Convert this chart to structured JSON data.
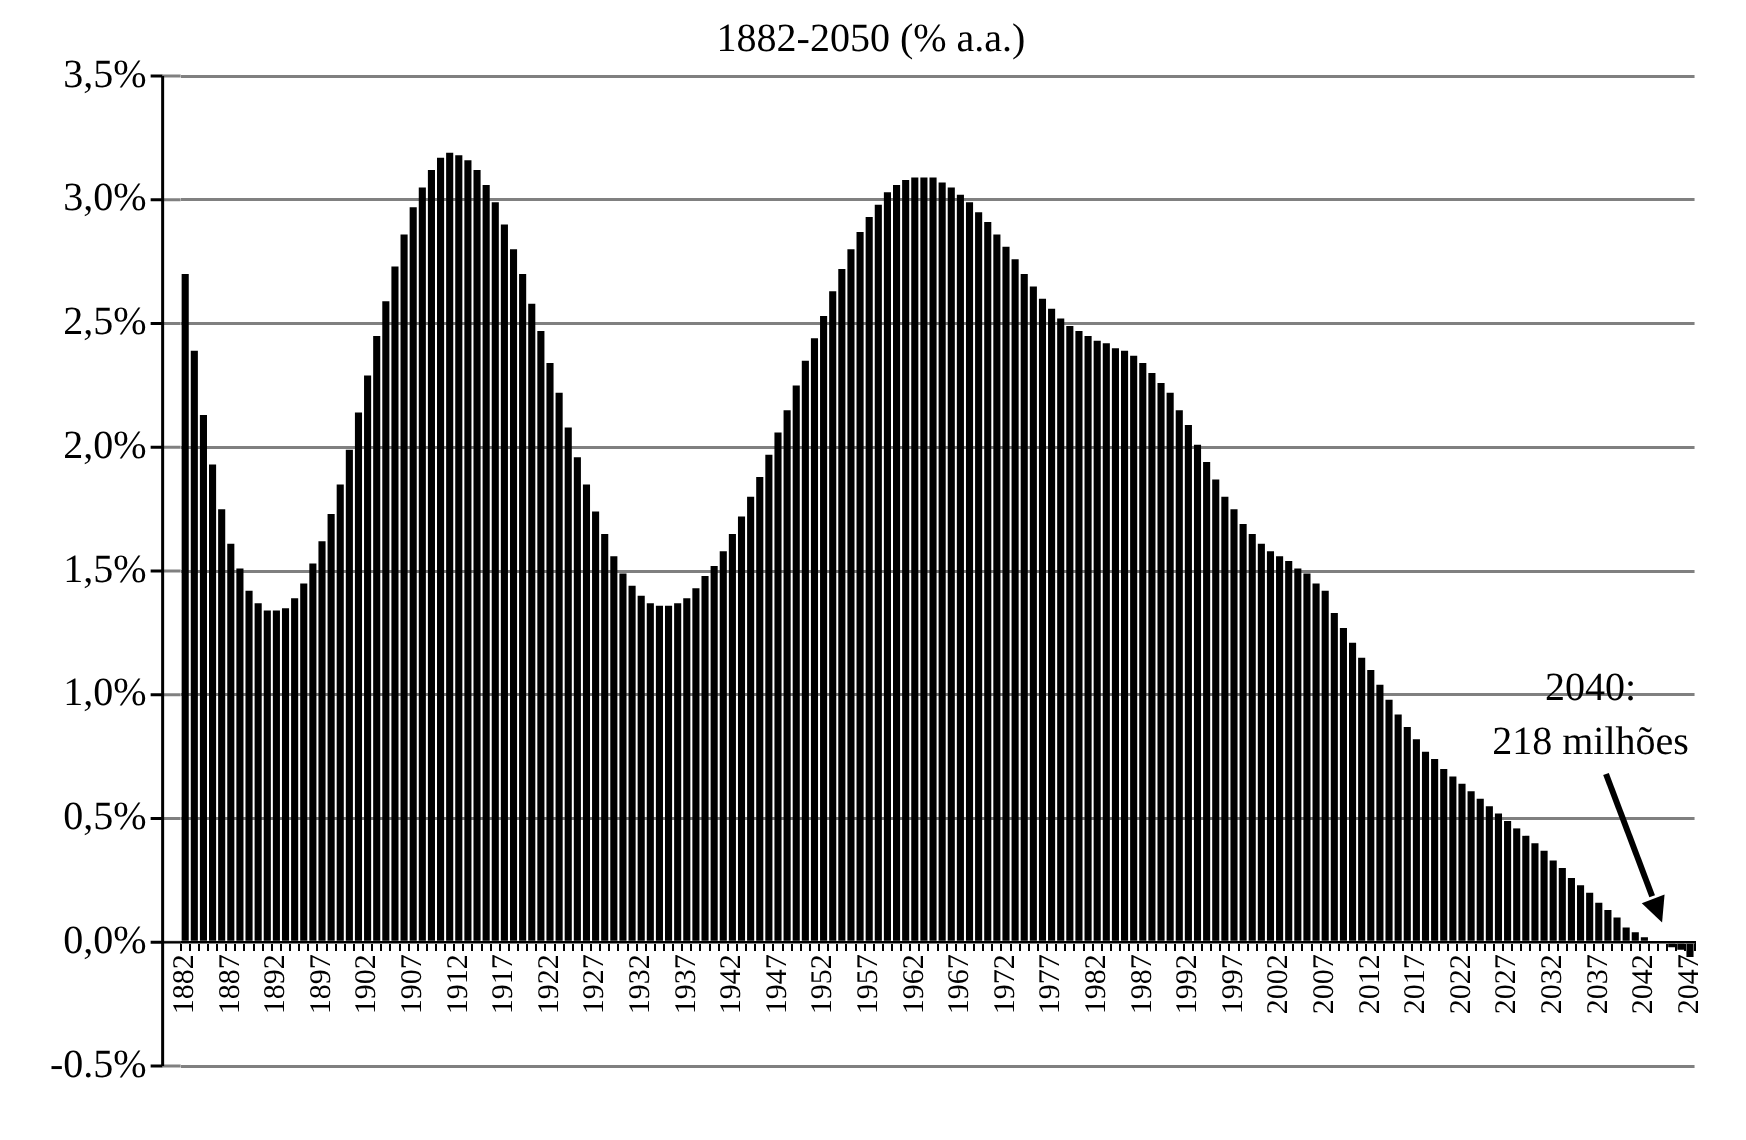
{
  "chart_data": {
    "type": "bar",
    "title": "1882-2050 (% a.a.)",
    "categories": [
      "1882",
      null,
      null,
      null,
      null,
      "1887",
      null,
      null,
      null,
      null,
      "1892",
      null,
      null,
      null,
      null,
      "1897",
      null,
      null,
      null,
      null,
      "1902",
      null,
      null,
      null,
      null,
      "1907",
      null,
      null,
      null,
      null,
      "1912",
      null,
      null,
      null,
      null,
      "1917",
      null,
      null,
      null,
      null,
      "1922",
      null,
      null,
      null,
      null,
      "1927",
      null,
      null,
      null,
      null,
      "1932",
      null,
      null,
      null,
      null,
      "1937",
      null,
      null,
      null,
      null,
      "1942",
      null,
      null,
      null,
      null,
      "1947",
      null,
      null,
      null,
      null,
      "1952",
      null,
      null,
      null,
      null,
      "1957",
      null,
      null,
      null,
      null,
      "1962",
      null,
      null,
      null,
      null,
      "1967",
      null,
      null,
      null,
      null,
      "1972",
      null,
      null,
      null,
      null,
      "1977",
      null,
      null,
      null,
      null,
      "1982",
      null,
      null,
      null,
      null,
      "1987",
      null,
      null,
      null,
      null,
      "1992",
      null,
      null,
      null,
      null,
      "1997",
      null,
      null,
      null,
      null,
      "2002",
      null,
      null,
      null,
      null,
      "2007",
      null,
      null,
      null,
      null,
      "2012",
      null,
      null,
      null,
      null,
      "2017",
      null,
      null,
      null,
      null,
      "2022",
      null,
      null,
      null,
      null,
      "2027",
      null,
      null,
      null,
      null,
      "2032",
      null,
      null,
      null,
      null,
      "2037",
      null,
      null,
      null,
      null,
      "2042",
      null,
      null,
      null,
      null,
      "2047"
    ],
    "values": [
      2.7,
      2.39,
      2.13,
      1.93,
      1.75,
      1.61,
      1.51,
      1.42,
      1.37,
      1.34,
      1.34,
      1.35,
      1.39,
      1.45,
      1.53,
      1.62,
      1.73,
      1.85,
      1.99,
      2.14,
      2.29,
      2.45,
      2.59,
      2.73,
      2.86,
      2.97,
      3.05,
      3.12,
      3.17,
      3.19,
      3.18,
      3.16,
      3.12,
      3.06,
      2.99,
      2.9,
      2.8,
      2.7,
      2.58,
      2.47,
      2.34,
      2.22,
      2.08,
      1.96,
      1.85,
      1.74,
      1.65,
      1.56,
      1.49,
      1.44,
      1.4,
      1.37,
      1.36,
      1.36,
      1.37,
      1.39,
      1.43,
      1.48,
      1.52,
      1.58,
      1.65,
      1.72,
      1.8,
      1.88,
      1.97,
      2.06,
      2.15,
      2.25,
      2.35,
      2.44,
      2.53,
      2.63,
      2.72,
      2.8,
      2.87,
      2.93,
      2.98,
      3.03,
      3.06,
      3.08,
      3.09,
      3.09,
      3.09,
      3.07,
      3.05,
      3.02,
      2.99,
      2.95,
      2.91,
      2.86,
      2.81,
      2.76,
      2.7,
      2.65,
      2.6,
      2.56,
      2.52,
      2.49,
      2.47,
      2.45,
      2.43,
      2.42,
      2.4,
      2.39,
      2.37,
      2.34,
      2.3,
      2.26,
      2.22,
      2.15,
      2.09,
      2.01,
      1.94,
      1.87,
      1.8,
      1.75,
      1.69,
      1.65,
      1.61,
      1.58,
      1.56,
      1.54,
      1.51,
      1.49,
      1.45,
      1.42,
      1.33,
      1.27,
      1.21,
      1.15,
      1.1,
      1.04,
      0.98,
      0.92,
      0.87,
      0.82,
      0.77,
      0.74,
      0.7,
      0.67,
      0.64,
      0.61,
      0.58,
      0.55,
      0.52,
      0.49,
      0.46,
      0.43,
      0.4,
      0.37,
      0.33,
      0.3,
      0.26,
      0.23,
      0.2,
      0.16,
      0.13,
      0.1,
      0.06,
      0.04,
      0.02,
      null,
      null,
      -0.02,
      -0.03,
      -0.06
    ],
    "color": "#000000",
    "ylim": [
      -0.5,
      3.5
    ],
    "yticks": [
      {
        "value": -0.5,
        "label": "-0.5%"
      },
      {
        "value": 0,
        "label": "0,0%"
      },
      {
        "value": 0.5,
        "label": "0,5%"
      },
      {
        "value": 1,
        "label": "1,0%"
      },
      {
        "value": 1.5,
        "label": "1,5%"
      },
      {
        "value": 2,
        "label": "2,0%"
      },
      {
        "value": 2.5,
        "label": "2,5%"
      },
      {
        "value": 3,
        "label": "3,0%"
      },
      {
        "value": 3.5,
        "label": "3,5%"
      }
    ],
    "grid": "y",
    "annotations": [
      "2040:\n218 milhões"
    ]
  }
}
